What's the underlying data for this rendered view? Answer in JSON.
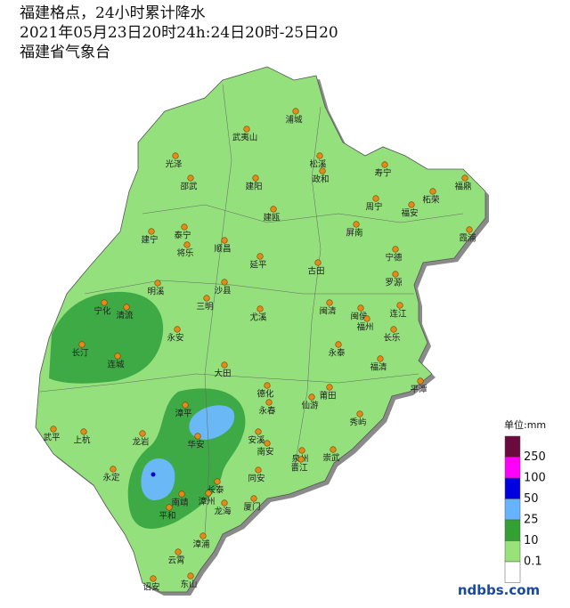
{
  "header": {
    "title": "福建格点，24小时累计降水",
    "period": "2021年05月23日20时24h:24日20时-25日20",
    "source": "福建省气象台"
  },
  "cities": [
    "浦城",
    "武夷山",
    "光泽",
    "松溪",
    "政和",
    "寿宁",
    "邵武",
    "建阳",
    "柘荣",
    "福鼎",
    "周宁",
    "福安",
    "建瓯",
    "霞浦",
    "建宁",
    "泰宁",
    "将乐",
    "顺昌",
    "屏南",
    "宁德",
    "延平",
    "古田",
    "罗源",
    "明溪",
    "沙县",
    "宁化",
    "清流",
    "三明",
    "尤溪",
    "闽清",
    "闽侯",
    "连江",
    "福州",
    "长乐",
    "永安",
    "长汀",
    "连城",
    "永泰",
    "福清",
    "大田",
    "平潭",
    "德化",
    "莆田",
    "仙游",
    "永春",
    "漳平",
    "武平",
    "上杭",
    "安溪",
    "秀屿",
    "龙岩",
    "华安",
    "南安",
    "泉州",
    "崇武",
    "晋江",
    "永定",
    "同安",
    "长泰",
    "南靖",
    "漳州",
    "厦门",
    "龙海",
    "平和",
    "漳浦",
    "云霄",
    "东山",
    "诏安"
  ],
  "legend": {
    "unit": "单位:mm",
    "labels": [
      "250",
      "100",
      "50",
      "25",
      "10",
      "0.1"
    ]
  },
  "watermark": "ndbbs.com"
}
